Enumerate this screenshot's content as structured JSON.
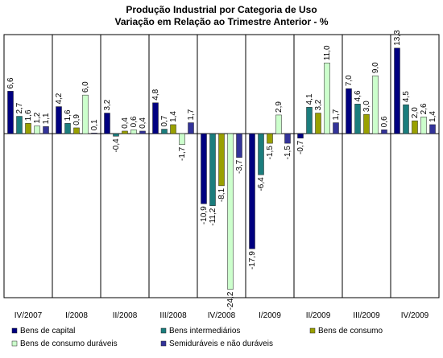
{
  "chart_data": {
    "type": "bar",
    "title": "Produção Industrial por Categoria de Uso",
    "subtitle": "Variação em Relação ao Trimestre Anterior - %",
    "categories": [
      "IV/2007",
      "I/2008",
      "II/2008",
      "III/2008",
      "IV/2008",
      "I/2009",
      "II/2009",
      "III/2009",
      "IV/2009"
    ],
    "ylim": [
      -25.5,
      15.4
    ],
    "series": [
      {
        "name": "Bens de capital",
        "color": "#000080",
        "values": [
          6.6,
          4.2,
          3.2,
          4.8,
          -10.9,
          -17.9,
          -0.7,
          7.0,
          13.3
        ],
        "value_labels": [
          "6,6",
          "4,2",
          "3,2",
          "4,8",
          "-10,9",
          "-17,9",
          "-0,7",
          "7,0",
          "13,3"
        ]
      },
      {
        "name": "Bens intermediários",
        "color": "#1b7d7d",
        "values": [
          2.7,
          1.6,
          -0.4,
          0.7,
          -11.2,
          -6.4,
          4.1,
          4.6,
          4.5
        ],
        "value_labels": [
          "2,7",
          "1,6",
          "-0,4",
          "0,7",
          "-11,2",
          "-6,4",
          "4,1",
          "4,6",
          "4,5"
        ]
      },
      {
        "name": "Bens de consumo",
        "color": "#99a000",
        "values": [
          1.6,
          0.9,
          0.4,
          1.4,
          -8.1,
          -1.5,
          3.2,
          3.0,
          2.0
        ],
        "value_labels": [
          "1,6",
          "0,9",
          "0,4",
          "1,4",
          "-8,1",
          "-1,5",
          "3,2",
          "3,0",
          "2,0"
        ]
      },
      {
        "name": "Bens de consumo duráveis",
        "color": "#ccffcc",
        "values": [
          1.2,
          6.0,
          0.6,
          -1.7,
          -24.2,
          2.9,
          11.0,
          9.0,
          2.6
        ],
        "value_labels": [
          "1,2",
          "6,0",
          "0,6",
          "-1,7",
          "-24,2",
          "2,9",
          "11,0",
          "9,0",
          "2,6"
        ]
      },
      {
        "name": "Semiduráveis e não duráveis",
        "color": "#333399",
        "values": [
          1.1,
          0.1,
          0.4,
          1.7,
          -3.7,
          -1.5,
          1.7,
          0.6,
          1.4
        ],
        "value_labels": [
          "1,1",
          "0,1",
          "0,4",
          "1,7",
          "-3,7",
          "-1,5",
          "1,7",
          "0,6",
          "1,4"
        ]
      }
    ]
  }
}
